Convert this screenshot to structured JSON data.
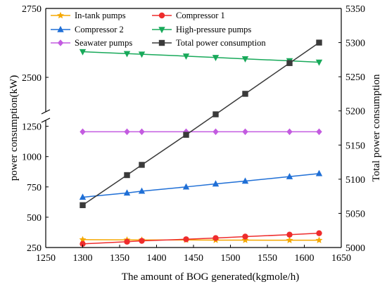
{
  "chart_data": {
    "type": "line",
    "xlabel": "The amount of BOG generated(kgmole/h)",
    "ylabel_left": "power consumption(kW)",
    "ylabel_right": "Total power consumption",
    "xlim": [
      1250,
      1650
    ],
    "x_ticks": [
      1250,
      1300,
      1350,
      1400,
      1450,
      1500,
      1550,
      1600,
      1650
    ],
    "left_axis_broken": true,
    "left_ylim_lower": [
      250,
      1300
    ],
    "left_ylim_upper": [
      2375,
      2750
    ],
    "left_ticks_lower": [
      250,
      500,
      750,
      1000,
      1250
    ],
    "left_ticks_upper": [
      2500,
      2750
    ],
    "right_ylim": [
      5000,
      5350
    ],
    "right_ticks": [
      5000,
      5050,
      5100,
      5150,
      5200,
      5250,
      5300,
      5350
    ],
    "legend_placement": "top-left, three rows",
    "x": [
      1300,
      1360,
      1380,
      1440,
      1480,
      1520,
      1580,
      1620
    ],
    "series": [
      {
        "name": "In-tank pumps",
        "axis": "left",
        "color": "#f5a800",
        "marker": "star",
        "values": [
          315,
          313,
          312,
          312,
          311,
          311,
          310,
          310
        ]
      },
      {
        "name": "Compressor 1",
        "axis": "left",
        "color": "#ee2c2c",
        "marker": "circle",
        "values": [
          280,
          298,
          305,
          318,
          328,
          340,
          356,
          368
        ]
      },
      {
        "name": "Compressor 2",
        "axis": "left",
        "color": "#1f6fd6",
        "marker": "triangle-up",
        "values": [
          665,
          700,
          715,
          750,
          775,
          798,
          835,
          860
        ]
      },
      {
        "name": "High-pressure pumps",
        "axis": "left",
        "color": "#18a95a",
        "marker": "triangle-down",
        "values": [
          2593,
          2586,
          2584,
          2577,
          2572,
          2567,
          2560,
          2555
        ]
      },
      {
        "name": "Seawater pumps",
        "axis": "left",
        "color": "#c35be0",
        "marker": "diamond",
        "values": [
          1205,
          1205,
          1205,
          1205,
          1205,
          1205,
          1205,
          1205
        ]
      },
      {
        "name": "Total power consumption",
        "axis": "right",
        "color": "#3a3a3a",
        "marker": "square",
        "values": [
          5062,
          5106,
          5121,
          5165,
          5195,
          5225,
          5270,
          5300
        ]
      }
    ]
  }
}
